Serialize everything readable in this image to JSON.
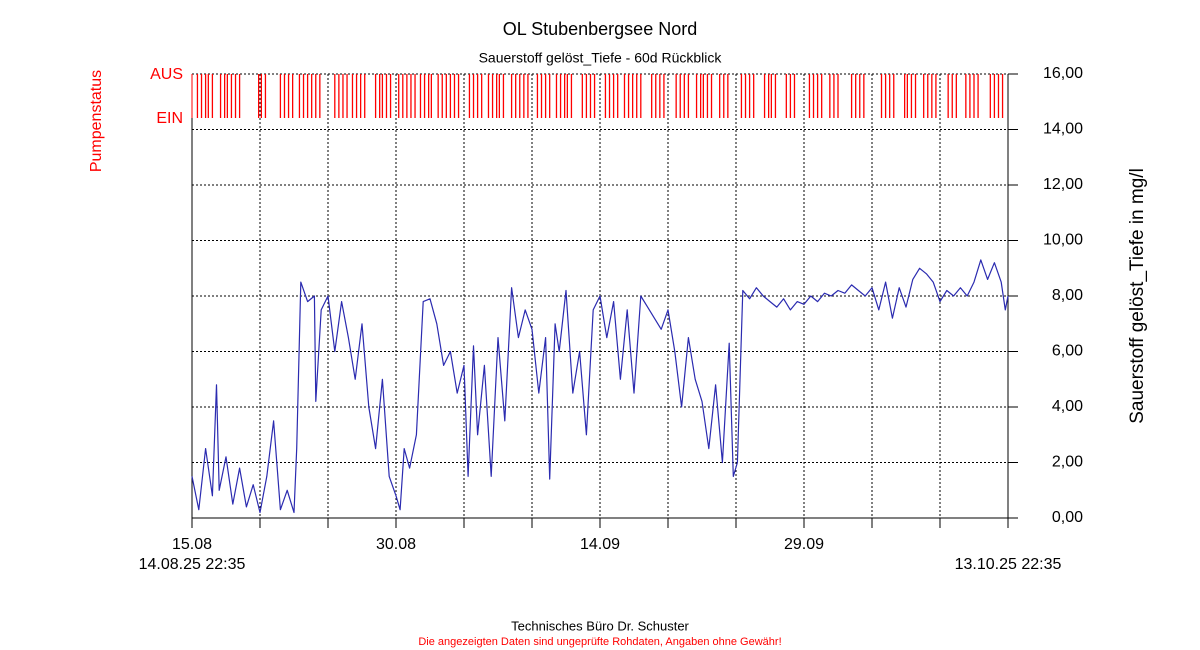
{
  "chart_data": {
    "type": "line",
    "title": "OL Stubenbergsee Nord",
    "subtitle": "Sauerstoff gelöst_Tiefe - 60d Rückblick",
    "y_label": "Sauerstoff gelöst_Tiefe in mg/l",
    "footer": "Technisches Büro Dr. Schuster",
    "disclaimer": "Die angezeigten Daten sind ungeprüfte Rohdaten, Angaben ohne Gewähr!",
    "color": "#2b2bb0",
    "grid": true,
    "xlim": [
      0,
      60
    ],
    "xticks": [
      {
        "value": 0,
        "label": "15.08"
      },
      {
        "value": 15,
        "label": "30.08"
      },
      {
        "value": 30,
        "label": "14.09"
      },
      {
        "value": 45,
        "label": "29.09"
      }
    ],
    "xminor": [
      5,
      10,
      20,
      25,
      35,
      40,
      50,
      55,
      60
    ],
    "start_label": "14.08.25 22:35",
    "end_label": "13.10.25 22:35",
    "ylim": [
      0,
      16
    ],
    "yticks": [
      {
        "value": 0,
        "label": "0,00"
      },
      {
        "value": 2,
        "label": "2,00"
      },
      {
        "value": 4,
        "label": "4,00"
      },
      {
        "value": 6,
        "label": "6,00"
      },
      {
        "value": 8,
        "label": "8,00"
      },
      {
        "value": 10,
        "label": "10,00"
      },
      {
        "value": 12,
        "label": "12,00"
      },
      {
        "value": 14,
        "label": "14,00"
      },
      {
        "value": 16,
        "label": "16,00"
      }
    ],
    "x": [
      0,
      0.5,
      1,
      1.5,
      1.8,
      2,
      2.5,
      3,
      3.5,
      4,
      4.5,
      5,
      5.5,
      6,
      6.5,
      7,
      7.5,
      7.7,
      8,
      8.5,
      9,
      9.1,
      9.5,
      10,
      10.5,
      11,
      11.5,
      12,
      12.5,
      13,
      13.5,
      14,
      14.5,
      15,
      15.3,
      15.6,
      16,
      16.5,
      17,
      17.5,
      18,
      18.5,
      19,
      19.5,
      20,
      20.3,
      20.7,
      21,
      21.5,
      22,
      22.5,
      23,
      23.5,
      24,
      24.5,
      25,
      25.5,
      26,
      26.3,
      26.7,
      27,
      27.5,
      28,
      28.5,
      29,
      29.5,
      30,
      30.5,
      31,
      31.5,
      32,
      32.5,
      33,
      33.5,
      34,
      34.5,
      35,
      35.5,
      36,
      36.5,
      37,
      37.5,
      38,
      38.5,
      39,
      39.5,
      39.8,
      40.1,
      40.5,
      41,
      41.5,
      42,
      42.5,
      43,
      43.5,
      44,
      44.5,
      45,
      45.5,
      46,
      46.5,
      47,
      47.5,
      48,
      48.5,
      49,
      49.5,
      50,
      50.5,
      51,
      51.5,
      52,
      52.5,
      53,
      53.5,
      54,
      54.5,
      55,
      55.5,
      56,
      56.5,
      57,
      57.5,
      58,
      58.5,
      59,
      59.5,
      59.8,
      60
    ],
    "values": [
      1.5,
      0.3,
      2.5,
      0.8,
      4.8,
      1.0,
      2.2,
      0.5,
      1.8,
      0.4,
      1.2,
      0.2,
      1.5,
      3.5,
      0.3,
      1.0,
      0.2,
      2.5,
      8.5,
      7.8,
      8.0,
      4.2,
      7.5,
      8.0,
      6.0,
      7.8,
      6.5,
      5.0,
      7.0,
      4.0,
      2.5,
      5.0,
      1.5,
      0.8,
      0.3,
      2.5,
      1.8,
      3.0,
      7.8,
      7.9,
      7.0,
      5.5,
      6.0,
      4.5,
      5.5,
      1.5,
      6.2,
      3.0,
      5.5,
      1.5,
      6.5,
      3.5,
      8.3,
      6.5,
      7.5,
      6.8,
      4.5,
      6.5,
      1.4,
      7.0,
      6.0,
      8.2,
      4.5,
      6.0,
      3.0,
      7.5,
      8.0,
      6.5,
      7.8,
      5.0,
      7.5,
      4.5,
      8.0,
      7.6,
      7.2,
      6.8,
      7.5,
      6.0,
      4.0,
      6.5,
      5.0,
      4.2,
      2.5,
      4.8,
      2.0,
      6.3,
      1.5,
      2.0,
      8.2,
      7.9,
      8.3,
      8.0,
      7.8,
      7.6,
      7.9,
      7.5,
      7.8,
      7.7,
      8.0,
      7.8,
      8.1,
      8.0,
      8.2,
      8.1,
      8.4,
      8.2,
      8.0,
      8.3,
      7.5,
      8.5,
      7.2,
      8.3,
      7.6,
      8.6,
      9.0,
      8.8,
      8.5,
      7.8,
      8.2,
      8.0,
      8.3,
      8.0,
      8.5,
      9.3,
      8.6,
      9.2,
      8.5,
      7.5,
      8.0
    ],
    "pump_status": {
      "label": "Pumpenstatus",
      "states": [
        "AUS",
        "EIN"
      ],
      "color": "#ff0000",
      "switch_x": [
        0.4,
        0.7,
        1.0,
        1.2,
        1.5,
        2.1,
        2.4,
        2.6,
        2.9,
        3.2,
        3.5,
        4.9,
        5.1,
        5.4,
        6.5,
        6.8,
        7.1,
        7.4,
        7.9,
        8.2,
        8.5,
        8.8,
        9.1,
        9.4,
        10.5,
        10.8,
        11.1,
        11.4,
        11.8,
        12.1,
        12.4,
        12.7,
        13.5,
        13.8,
        14.0,
        14.3,
        14.6,
        15.2,
        15.5,
        15.8,
        16.1,
        16.4,
        16.8,
        17.1,
        17.4,
        17.6,
        18.1,
        18.4,
        18.7,
        19.0,
        19.3,
        19.6,
        20.4,
        20.7,
        21.0,
        21.3,
        21.8,
        22.1,
        22.4,
        22.6,
        22.9,
        23.5,
        23.8,
        24.1,
        24.4,
        24.7,
        25.4,
        25.7,
        26.0,
        26.3,
        26.8,
        27.1,
        27.4,
        27.6,
        27.9,
        28.7,
        29.0,
        29.3,
        29.6,
        30.4,
        30.7,
        31.0,
        31.3,
        31.8,
        32.1,
        32.4,
        32.7,
        33.0,
        33.8,
        34.1,
        34.4,
        34.7,
        35.6,
        35.9,
        36.2,
        36.5,
        37.1,
        37.4,
        37.6,
        37.9,
        38.2,
        38.8,
        39.1,
        39.4,
        40.4,
        40.7,
        41.0,
        41.3,
        42.1,
        42.4,
        42.6,
        42.9,
        43.7,
        44.0,
        44.3,
        45.4,
        45.7,
        46.0,
        46.3,
        46.9,
        47.2,
        47.5,
        48.5,
        48.8,
        49.1,
        49.4,
        50.7,
        51.0,
        51.3,
        51.6,
        52.4,
        52.6,
        52.9,
        53.2,
        53.8,
        54.1,
        54.4,
        54.7,
        55.6,
        55.9,
        56.2,
        56.9,
        57.2,
        57.5,
        57.8,
        58.7,
        59.0,
        59.3,
        59.6
      ]
    }
  }
}
